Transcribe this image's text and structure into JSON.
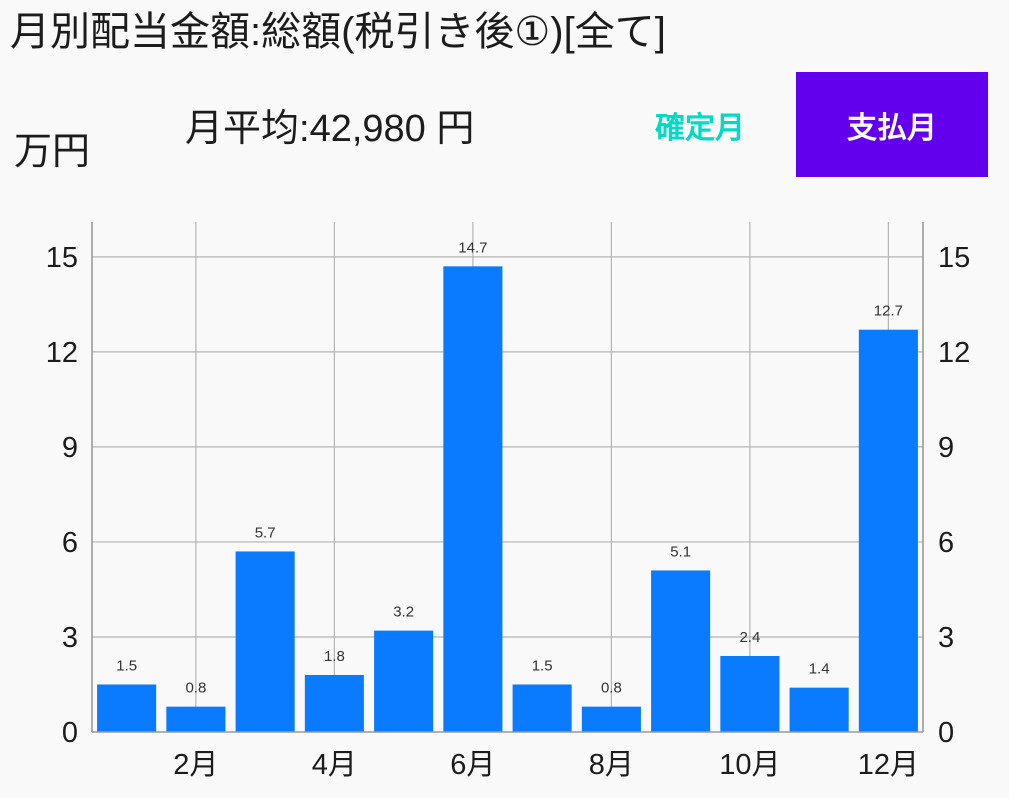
{
  "chart_data": {
    "type": "bar",
    "title": "月別配当金額:総額(税引き後①)[全て]",
    "ylabel": "万円",
    "x": [
      1,
      2,
      3,
      4,
      5,
      6,
      7,
      8,
      9,
      10,
      11,
      12
    ],
    "values": [
      1.5,
      0.8,
      5.7,
      1.8,
      3.2,
      14.7,
      1.5,
      0.8,
      5.1,
      2.4,
      1.4,
      12.7
    ],
    "xlim": [
      0.5,
      12.5
    ],
    "xticks": [
      2,
      4,
      6,
      8,
      10,
      12
    ],
    "xticklabels": [
      "2月",
      "4月",
      "6月",
      "8月",
      "10月",
      "12月"
    ],
    "ylim": [
      0,
      16.1
    ],
    "yticks": [
      0,
      3,
      6,
      9,
      12,
      15
    ],
    "secondary_y_axis": true,
    "grid": true,
    "bar_color": "#0a7bff"
  },
  "summary": {
    "average_label": "月平均:",
    "average_value": "42,980",
    "average_unit": "円"
  },
  "toggle": {
    "options": [
      {
        "label": "確定月",
        "selected": false
      },
      {
        "label": "支払月",
        "selected": true
      }
    ]
  },
  "colors": {
    "accent": "#03dac5",
    "primary": "#6200ee",
    "background": "#f9f9f9"
  }
}
